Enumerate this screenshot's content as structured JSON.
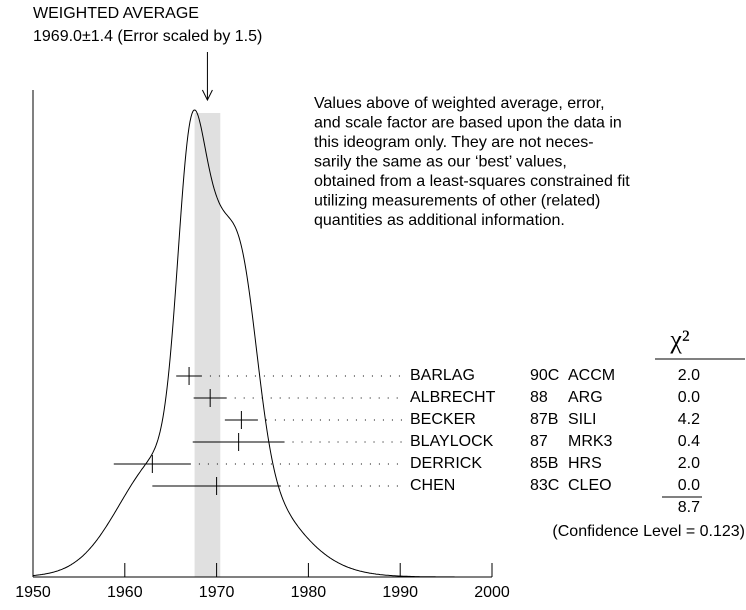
{
  "chart_data": {
    "type": "ideogram",
    "title": "WEIGHTED AVERAGE",
    "subtitle": "1969.0±1.4 (Error scaled by 1.5)",
    "weighted_average": {
      "value": 1969.0,
      "error": 1.4
    },
    "note": [
      "Values above of weighted average, error,",
      "and scale factor are based upon the data in",
      "this ideogram only.  They are not neces-",
      "sarily the same as our ‘best’ values,",
      "obtained from a least-squares constrained fit",
      "utilizing measurements of other (related)",
      "quantities as additional information."
    ],
    "chi2_header": "χ²",
    "measurements": [
      {
        "name": "BARLAG",
        "ref": "90C",
        "experiment": "ACCM",
        "value": 1967.0,
        "error": 1.4,
        "chi2": "2.0"
      },
      {
        "name": "ALBRECHT",
        "ref": "88",
        "experiment": "ARG",
        "value": 1969.3,
        "error": 1.8,
        "chi2": "0.0"
      },
      {
        "name": "BECKER",
        "ref": "87B",
        "experiment": "SILI",
        "value": 1972.7,
        "error": 1.8,
        "chi2": "4.2"
      },
      {
        "name": "BLAYLOCK",
        "ref": "87",
        "experiment": "MRK3",
        "value": 1972.4,
        "error": 5.0,
        "chi2": "0.4"
      },
      {
        "name": "DERRICK",
        "ref": "85B",
        "experiment": "HRS",
        "value": 1963.0,
        "error": 4.2,
        "chi2": "2.0"
      },
      {
        "name": "CHEN",
        "ref": "83C",
        "experiment": "CLEO",
        "value": 1970.0,
        "error": 7.0,
        "chi2": "0.0"
      }
    ],
    "total_chi2": "8.7",
    "confidence_level": "(Confidence Level = 0.123)",
    "xlim": [
      1950,
      2000
    ],
    "xticks": [
      1950,
      1960,
      1970,
      1980,
      1990,
      2000
    ]
  }
}
